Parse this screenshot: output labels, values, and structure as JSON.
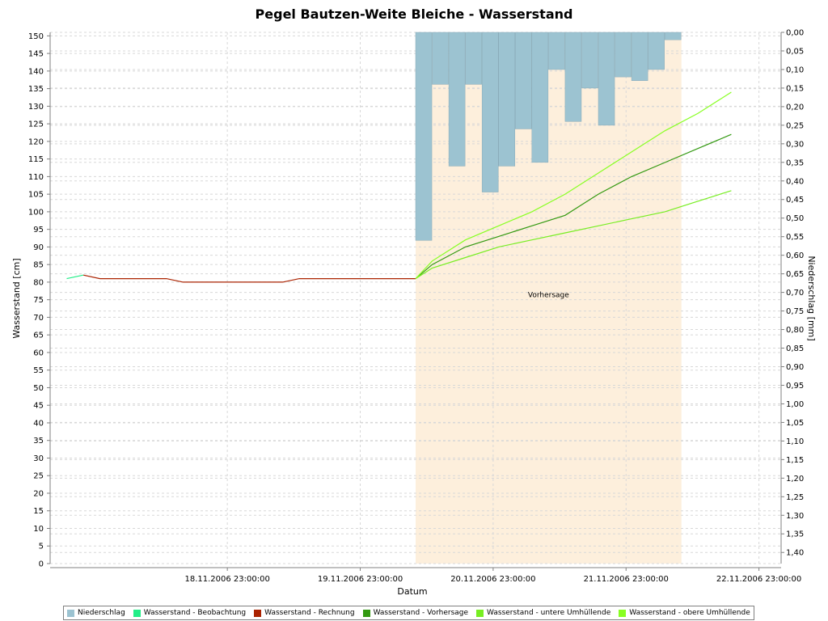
{
  "chart_data": {
    "type": "line",
    "title": "Pegel Bautzen-Weite Bleiche - Wasserstand",
    "xlabel": "Datum",
    "ylabel": "Wasserstand [cm]",
    "y2label": "Niederschlag [mm]",
    "x_ticks": [
      "18.11.2006 23:00:00",
      "19.11.2006 23:00:00",
      "20.11.2006 23:00:00",
      "21.11.2006 23:00:00",
      "22.11.2006 23:00:00"
    ],
    "xlim": [
      "2006-11-17T15:00",
      "2006-11-23T03:00"
    ],
    "ylim": [
      0,
      151
    ],
    "y_ticks": [
      0,
      5,
      10,
      15,
      20,
      25,
      30,
      35,
      40,
      45,
      50,
      55,
      60,
      65,
      70,
      75,
      80,
      85,
      90,
      95,
      100,
      105,
      110,
      115,
      120,
      125,
      130,
      135,
      140,
      145,
      150
    ],
    "y2lim_inverted": [
      0.0,
      1.43
    ],
    "y2_ticks": [
      "0,00",
      "0,05",
      "0,10",
      "0,15",
      "0,20",
      "0,25",
      "0,30",
      "0,35",
      "0,40",
      "0,45",
      "0,50",
      "0,55",
      "0,60",
      "0,65",
      "0,70",
      "0,75",
      "0,80",
      "0,85",
      "0,90",
      "0,95",
      "1,00",
      "1,05",
      "1,10",
      "1,15",
      "1,20",
      "1,25",
      "1,30",
      "1,35",
      "1,40"
    ],
    "grid": true,
    "legend_position": "bottom",
    "forecast_region": {
      "label": "Vorhersage",
      "start": "2006-11-20T09:00",
      "end": "2006-11-22T09:00",
      "color": "#fdefdc"
    },
    "precipitation": {
      "name": "Niederschlag",
      "color": "#9cc3d1",
      "bar_hours": 3,
      "x": [
        "2006-11-20T09:00",
        "2006-11-20T12:00",
        "2006-11-20T15:00",
        "2006-11-20T18:00",
        "2006-11-20T21:00",
        "2006-11-21T00:00",
        "2006-11-21T03:00",
        "2006-11-21T06:00",
        "2006-11-21T09:00",
        "2006-11-21T12:00",
        "2006-11-21T15:00",
        "2006-11-21T18:00",
        "2006-11-21T21:00",
        "2006-11-22T00:00",
        "2006-11-22T03:00",
        "2006-11-22T06:00"
      ],
      "values": [
        0.56,
        0.14,
        0.36,
        0.14,
        0.43,
        0.36,
        0.26,
        0.35,
        0.1,
        0.24,
        0.15,
        0.25,
        0.12,
        0.13,
        0.1,
        0.02
      ]
    },
    "series": [
      {
        "name": "Wasserstand - Beobachtung",
        "color": "#22ee88",
        "x": [
          "2006-11-17T18:00",
          "2006-11-17T21:00"
        ],
        "y": [
          81,
          82
        ]
      },
      {
        "name": "Wasserstand - Rechnung",
        "color": "#aa2200",
        "x": [
          "2006-11-17T21:00",
          "2006-11-18T00:00",
          "2006-11-18T09:00",
          "2006-11-18T12:00",
          "2006-11-18T15:00",
          "2006-11-19T06:00",
          "2006-11-19T09:00",
          "2006-11-19T12:00",
          "2006-11-20T09:00"
        ],
        "y": [
          82,
          81,
          81,
          81,
          80,
          80,
          80,
          81,
          81
        ]
      },
      {
        "name": "Wasserstand - Vorhersage",
        "color": "#339911",
        "x": [
          "2006-11-20T09:00",
          "2006-11-20T12:00",
          "2006-11-20T18:00",
          "2006-11-21T00:00",
          "2006-11-21T06:00",
          "2006-11-21T12:00",
          "2006-11-21T18:00",
          "2006-11-22T00:00",
          "2006-11-22T06:00",
          "2006-11-22T12:00",
          "2006-11-22T18:00"
        ],
        "y": [
          81,
          85,
          90,
          93,
          96,
          99,
          105,
          110,
          114,
          118,
          122
        ]
      },
      {
        "name": "Wasserstand - untere Umhüllende",
        "color": "#77ee22",
        "x": [
          "2006-11-20T09:00",
          "2006-11-20T12:00",
          "2006-11-20T18:00",
          "2006-11-21T00:00",
          "2006-11-21T06:00",
          "2006-11-21T12:00",
          "2006-11-21T18:00",
          "2006-11-22T00:00",
          "2006-11-22T06:00",
          "2006-11-22T12:00",
          "2006-11-22T18:00"
        ],
        "y": [
          81,
          84,
          87,
          90,
          92,
          94,
          96,
          98,
          100,
          103,
          106
        ]
      },
      {
        "name": "Wasserstand - obere Umhüllende",
        "color": "#88ff22",
        "x": [
          "2006-11-20T09:00",
          "2006-11-20T12:00",
          "2006-11-20T18:00",
          "2006-11-21T00:00",
          "2006-11-21T06:00",
          "2006-11-21T12:00",
          "2006-11-21T18:00",
          "2006-11-22T00:00",
          "2006-11-22T06:00",
          "2006-11-22T12:00",
          "2006-11-22T18:00"
        ],
        "y": [
          81,
          86,
          92,
          96,
          100,
          105,
          111,
          117,
          123,
          128,
          134
        ]
      }
    ]
  }
}
